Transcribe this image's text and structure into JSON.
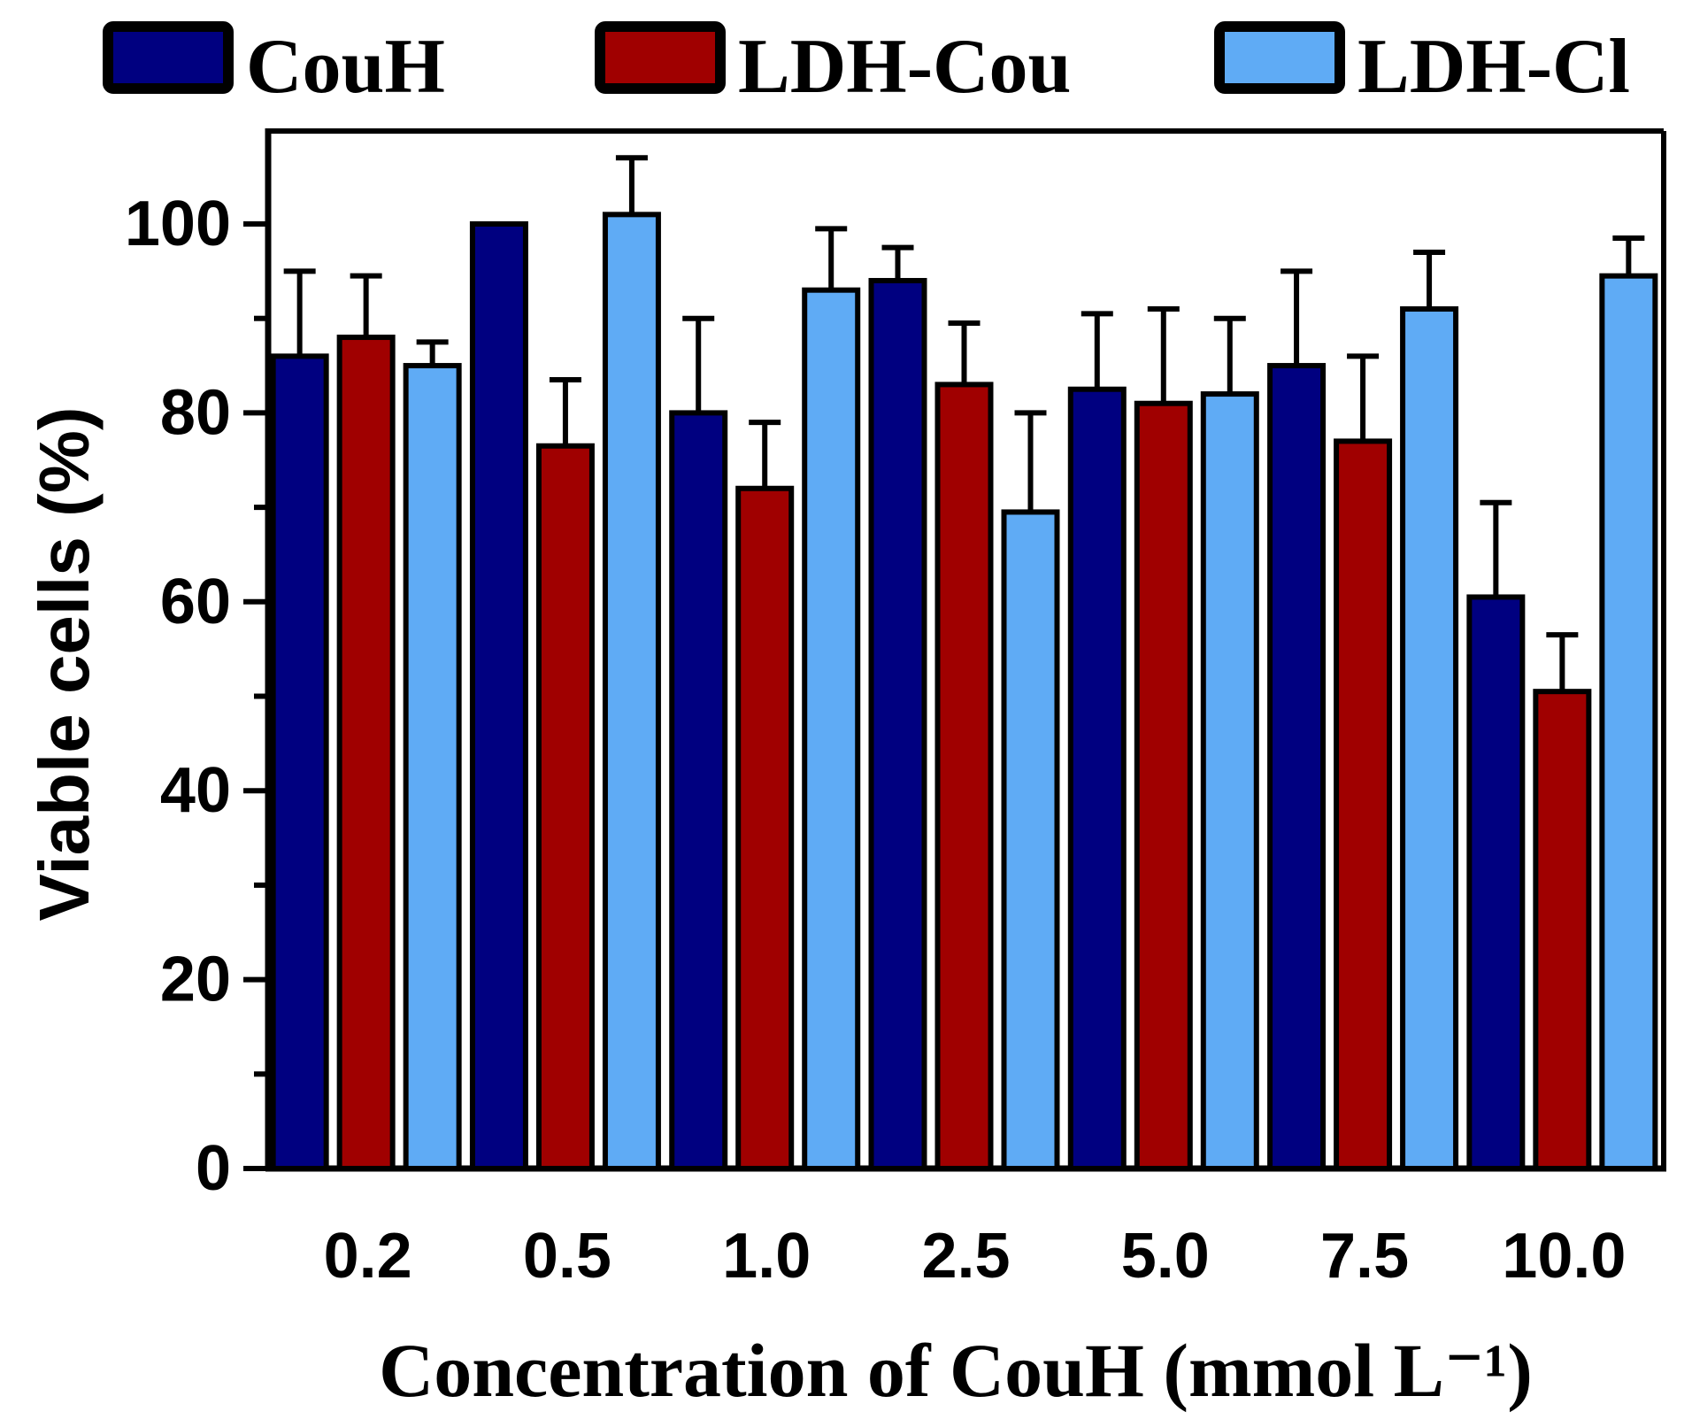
{
  "chart_data": {
    "type": "bar",
    "title": "",
    "xlabel": "Concentration of CouH (mmol L⁻¹)",
    "ylabel": "Viable cells (%)",
    "ylim": [
      0,
      110
    ],
    "yticks": [
      0,
      20,
      40,
      60,
      80,
      100
    ],
    "categories": [
      "0.2",
      "0.5",
      "1.0",
      "2.5",
      "5.0",
      "7.5",
      "10.0"
    ],
    "legend_position": "top",
    "series": [
      {
        "name": "CouH",
        "color": "#000080",
        "values": [
          86,
          100,
          80,
          94,
          82.5,
          85,
          60.5
        ],
        "errors": [
          9,
          0,
          10,
          3.5,
          8,
          10,
          10
        ]
      },
      {
        "name": "LDH-Cou",
        "color": "#a00000",
        "values": [
          88,
          76.5,
          72,
          83,
          81,
          77,
          50.5
        ],
        "errors": [
          6.5,
          7,
          7,
          6.5,
          10,
          9,
          6
        ]
      },
      {
        "name": "LDH-Cl",
        "color": "#5fabf5",
        "values": [
          85,
          101,
          93,
          69.5,
          82,
          91,
          94.5
        ],
        "errors": [
          2.5,
          6,
          6.5,
          10.5,
          8,
          6,
          4
        ]
      }
    ]
  }
}
